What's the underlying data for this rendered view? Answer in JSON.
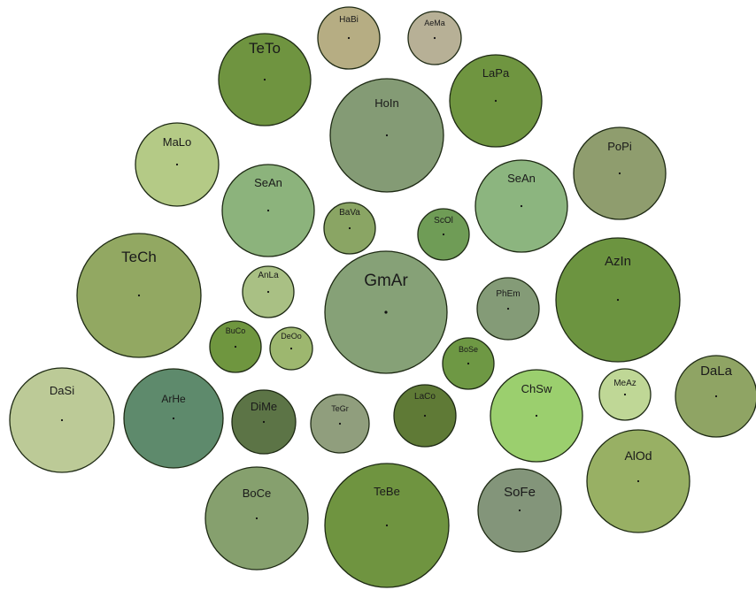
{
  "chart_data": {
    "type": "bubble",
    "title": "",
    "bubbles": [
      {
        "label": "HaBi",
        "color": "#b6ad83"
      },
      {
        "label": "AeMa",
        "color": "#b7b096"
      },
      {
        "label": "TeTo",
        "color": "#6f9440"
      },
      {
        "label": "LaPa",
        "color": "#6f9540"
      },
      {
        "label": "HoIn",
        "color": "#849b75"
      },
      {
        "label": "MaLo",
        "color": "#b4ca86"
      },
      {
        "label": "PoPi",
        "color": "#8f9d6e"
      },
      {
        "label": "SeAn",
        "color": "#8cb37c"
      },
      {
        "label": "SeAn",
        "color": "#8cb57f"
      },
      {
        "label": "BaVa",
        "color": "#8aa564"
      },
      {
        "label": "ScOl",
        "color": "#6f9c56"
      },
      {
        "label": "TeCh",
        "color": "#92a862"
      },
      {
        "label": "AzIn",
        "color": "#6c9440"
      },
      {
        "label": "AnLa",
        "color": "#a9c084"
      },
      {
        "label": "GmAr",
        "color": "#86a177"
      },
      {
        "label": "PhEm",
        "color": "#849b77"
      },
      {
        "label": "BuCo",
        "color": "#6f963f"
      },
      {
        "label": "DeOo",
        "color": "#9db76f"
      },
      {
        "label": "BoSe",
        "color": "#6e9844"
      },
      {
        "label": "DaSi",
        "color": "#bcca97"
      },
      {
        "label": "ArHe",
        "color": "#5e8a6c"
      },
      {
        "label": "DiMe",
        "color": "#5c7446"
      },
      {
        "label": "TeGr",
        "color": "#909e7d"
      },
      {
        "label": "LaCo",
        "color": "#5f7a36"
      },
      {
        "label": "ChSw",
        "color": "#9bcf6e"
      },
      {
        "label": "MeAz",
        "color": "#bfd796"
      },
      {
        "label": "DaLa",
        "color": "#8fa464"
      },
      {
        "label": "AlOd",
        "color": "#98b064"
      },
      {
        "label": "BoCe",
        "color": "#86a06e"
      },
      {
        "label": "TeBe",
        "color": "#6f9440"
      },
      {
        "label": "SoFe",
        "color": "#83957a"
      }
    ]
  }
}
